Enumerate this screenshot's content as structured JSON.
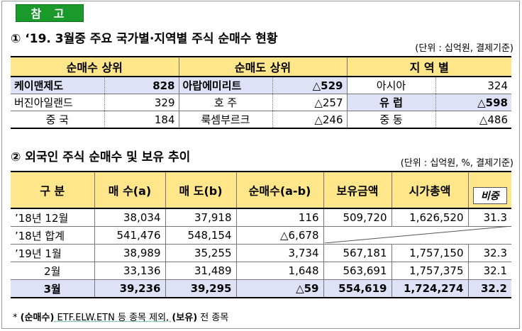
{
  "badge": "참 고",
  "section1": {
    "title": "① ‘19. 3월중 주요 국가별·지역별 주식 순매수 현황",
    "unit": "(단위 : 십억원, 결제기준)",
    "headers": [
      "순매수 상위",
      "순매도 상위",
      "지 역 별"
    ],
    "rows": [
      {
        "buy_name": "케이맨제도",
        "buy_value": "828",
        "sell_name": "아랍에미리트",
        "sell_value": "△529",
        "region_name": "아시아",
        "region_value": "324"
      },
      {
        "buy_name": "버진아일랜드",
        "buy_value": "329",
        "sell_name": "호 주",
        "sell_value": "△257",
        "region_name": "유 럽",
        "region_value": "△598"
      },
      {
        "buy_name": "중 국",
        "buy_value": "184",
        "sell_name": "룩셈부르크",
        "sell_value": "△246",
        "region_name": "중 동",
        "region_value": "△486"
      }
    ]
  },
  "section2": {
    "title": "② 외국인 주식 순매수 및 보유 추이",
    "unit": "(단위 : 십억원, %, 결제기준)",
    "headers": [
      "구 분",
      "매 수(a)",
      "매 도(b)",
      "순매수(a-b)",
      "보유금액",
      "시가총액",
      "비중"
    ],
    "rows": [
      {
        "period": "’18년 12월",
        "buy": "38,034",
        "sell": "37,918",
        "net": "116",
        "holding": "509,720",
        "market_cap": "1,626,520",
        "share": "31.3"
      },
      {
        "period": "’18년 합계",
        "buy": "541,476",
        "sell": "548,154",
        "net": "△6,678",
        "holding": "",
        "market_cap": "",
        "share": ""
      },
      {
        "period": "’19년 1월",
        "buy": "38,989",
        "sell": "35,255",
        "net": "3,734",
        "holding": "567,181",
        "market_cap": "1,757,150",
        "share": "32.3"
      },
      {
        "period": "2월",
        "buy": "33,136",
        "sell": "31,489",
        "net": "1,648",
        "holding": "563,691",
        "market_cap": "1,757,375",
        "share": "32.1"
      },
      {
        "period": "3월",
        "buy": "39,236",
        "sell": "39,295",
        "net": "△59",
        "holding": "554,619",
        "market_cap": "1,724,274",
        "share": "32.2"
      }
    ]
  },
  "footnote": {
    "prefix": "* ",
    "part1_bold": "(순매수)",
    "part1_text": " ETF.ELW.ETN 등 종목 제외, ",
    "part2_bold": "(보유)",
    "part2_text": " 전 종목"
  }
}
